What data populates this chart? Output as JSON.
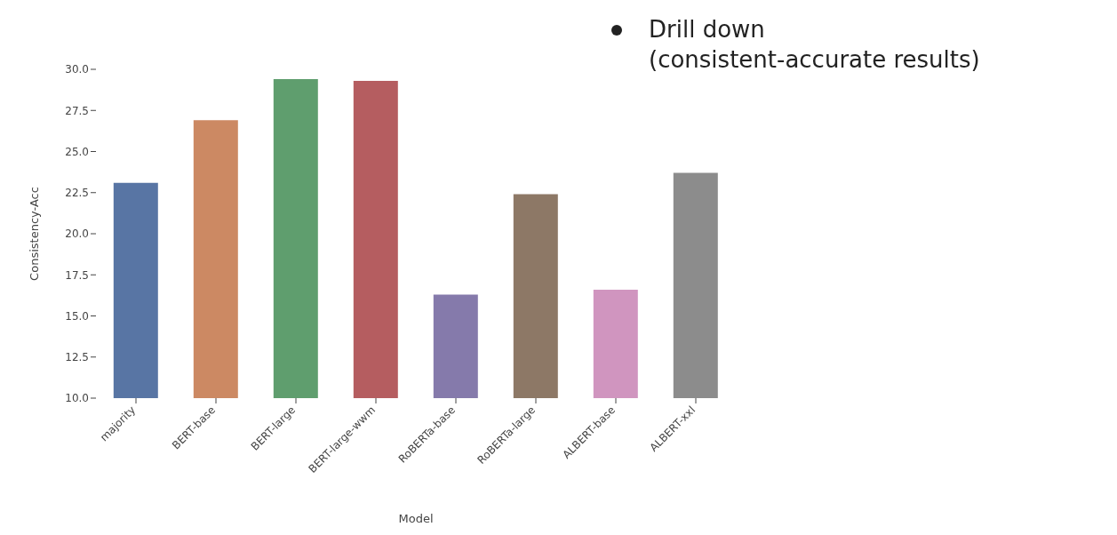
{
  "chart_data": {
    "type": "bar",
    "xlabel": "Model",
    "ylabel": "Consistency-Acc",
    "categories": [
      "majority",
      "BERT-base",
      "BERT-large",
      "BERT-large-wwm",
      "RoBERTa-base",
      "RoBERTa-large",
      "ALBERT-base",
      "ALBERT-xxl"
    ],
    "values": [
      23.1,
      26.9,
      29.4,
      29.3,
      16.3,
      22.4,
      16.6,
      23.7
    ],
    "colors": [
      "#5875a4",
      "#cc8963",
      "#5f9e6e",
      "#b55d60",
      "#857aab",
      "#8d7866",
      "#d095bf",
      "#8c8c8c"
    ],
    "ylim": [
      10,
      30
    ],
    "yticks": [
      {
        "value": 10,
        "label": "10.0"
      },
      {
        "value": 12.5,
        "label": "12.5"
      },
      {
        "value": 15,
        "label": "15.0"
      },
      {
        "value": 17.5,
        "label": "17.5"
      },
      {
        "value": 20,
        "label": "20.0"
      },
      {
        "value": 22.5,
        "label": "22.5"
      },
      {
        "value": 25,
        "label": "25.0"
      },
      {
        "value": 27.5,
        "label": "27.5"
      },
      {
        "value": 30,
        "label": "30.0"
      }
    ],
    "grid": false,
    "annotations": [
      "Drill down\n(consistent-accurate results)"
    ]
  }
}
